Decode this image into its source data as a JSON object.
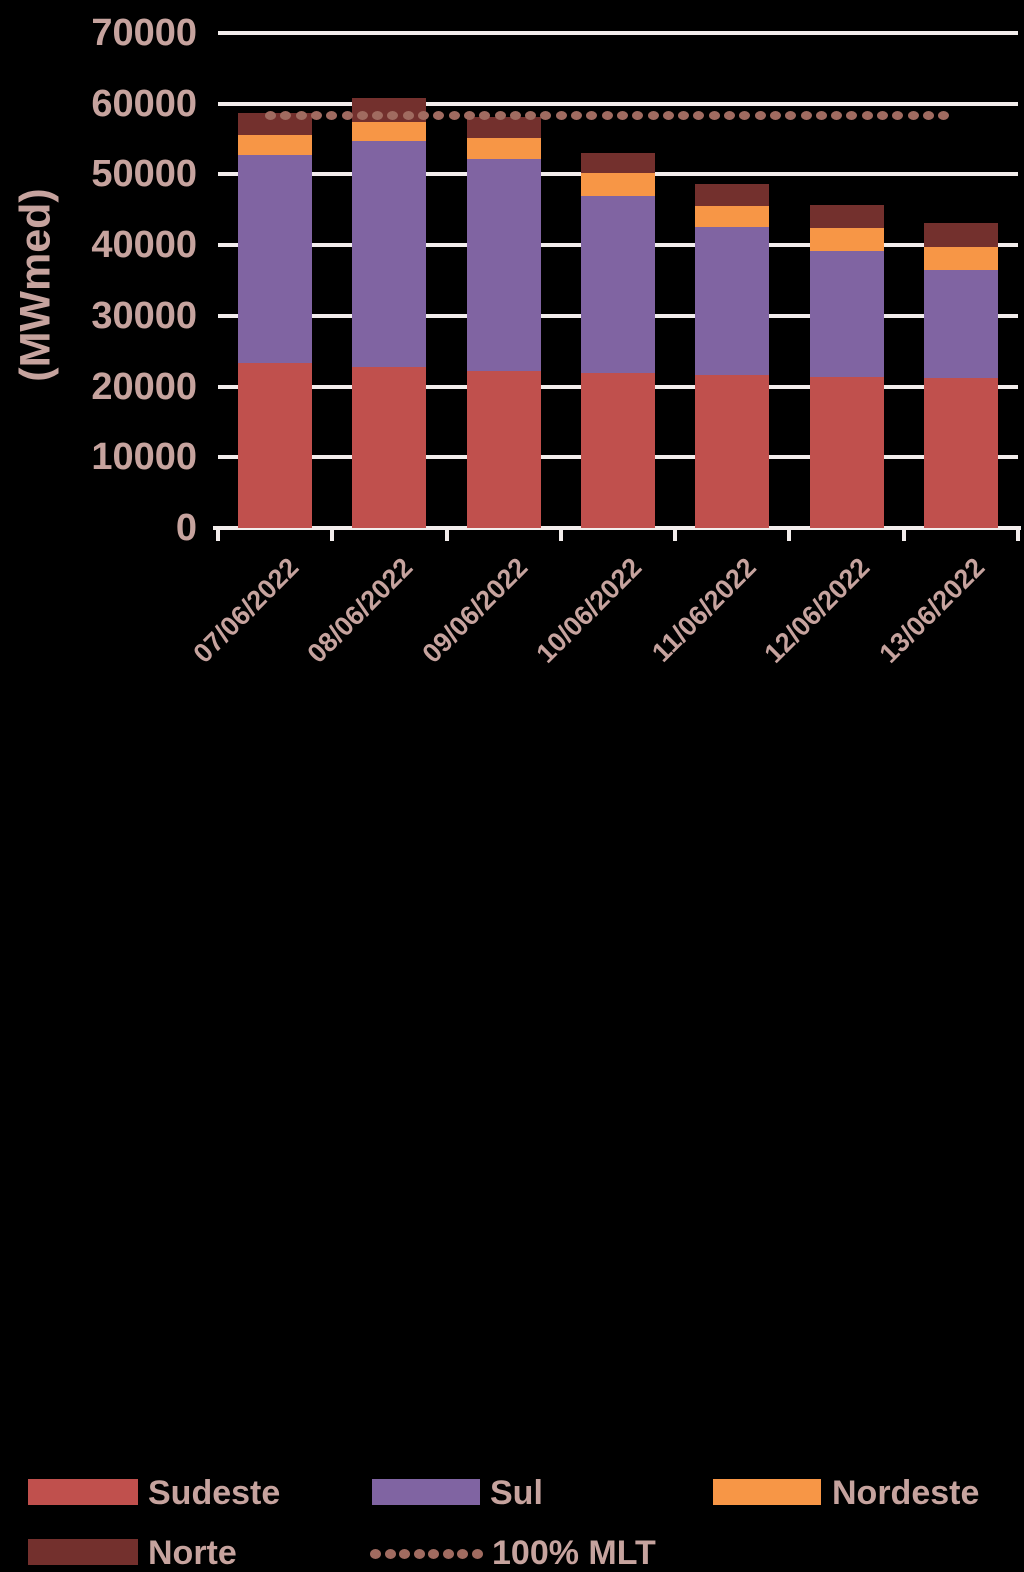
{
  "chart_data": {
    "type": "bar",
    "stacked": true,
    "title": "",
    "ylabel": "(MWmed)",
    "xlabel": "",
    "ylim": [
      0,
      70000
    ],
    "ytick_step": 10000,
    "ytick_labels": [
      "0",
      "10000",
      "20000",
      "30000",
      "40000",
      "50000",
      "60000",
      "70000"
    ],
    "grid": true,
    "legend_position": "bottom",
    "categories": [
      "07/06/2022",
      "08/06/2022",
      "09/06/2022",
      "10/06/2022",
      "11/06/2022",
      "12/06/2022",
      "13/06/2022"
    ],
    "series": [
      {
        "name": "Sudeste",
        "color": "#C0504D",
        "values": [
          23400,
          22700,
          22200,
          21900,
          21700,
          21400,
          21200
        ]
      },
      {
        "name": "Sul",
        "color": "#8064A2",
        "values": [
          29400,
          32000,
          30000,
          25000,
          20800,
          17800,
          15300
        ]
      },
      {
        "name": "Nordeste",
        "color": "#F79646",
        "values": [
          2800,
          2700,
          3000,
          3300,
          3000,
          3200,
          3300
        ]
      },
      {
        "name": "Norte",
        "color": "#73302D",
        "values": [
          3100,
          3400,
          2900,
          2800,
          3200,
          3300,
          3300
        ]
      }
    ],
    "totals": [
      58700,
      60800,
      58100,
      53000,
      48700,
      45700,
      43100
    ],
    "reference_line": {
      "name": "100% MLT",
      "value": 58300,
      "style": "dotted",
      "color": "#A06B60"
    },
    "colors": {
      "background": "#000000",
      "text": "#C6A39E",
      "gridline": "#F2EDEC"
    }
  }
}
